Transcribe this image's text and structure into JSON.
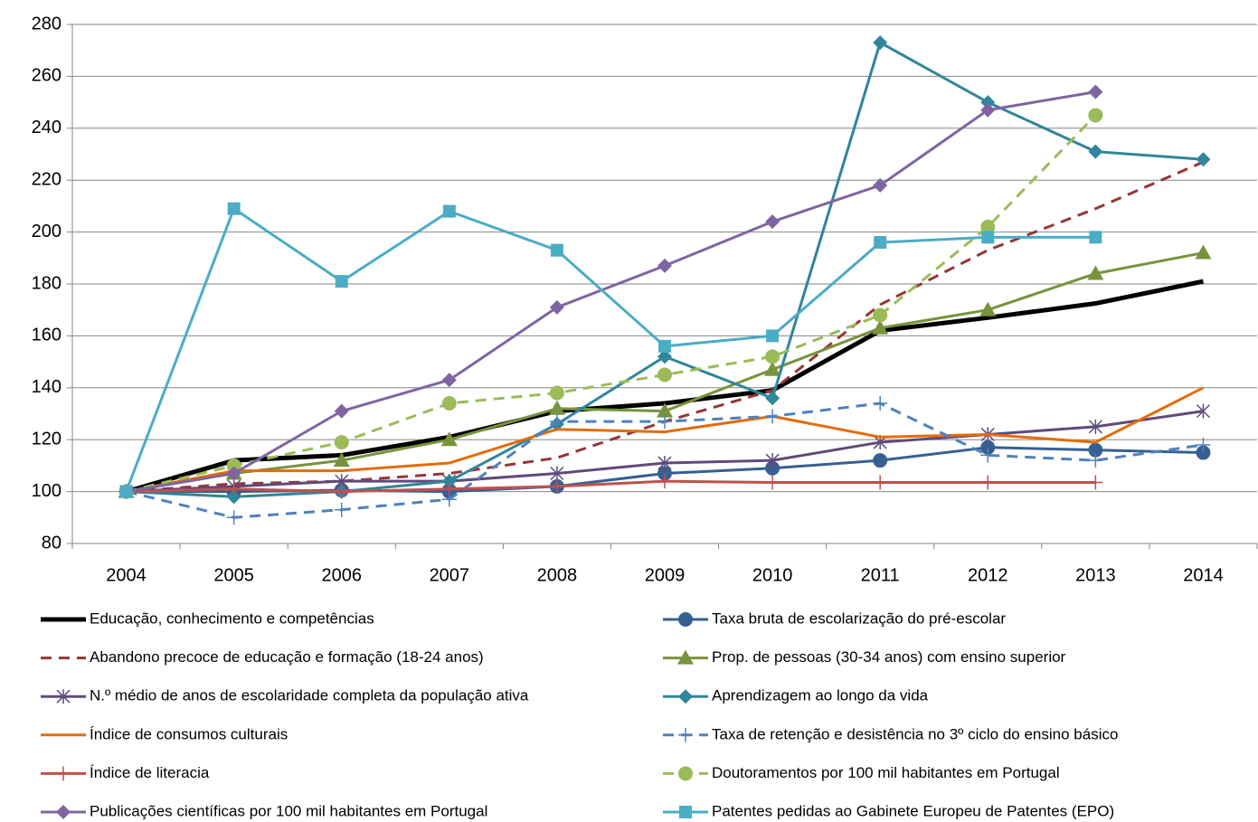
{
  "chart_data": {
    "type": "line",
    "categories": [
      "2004",
      "2005",
      "2006",
      "2007",
      "2008",
      "2009",
      "2010",
      "2011",
      "2012",
      "2013",
      "2014"
    ],
    "ylim": [
      80,
      280
    ],
    "yticks": [
      80,
      100,
      120,
      140,
      160,
      180,
      200,
      220,
      240,
      260,
      280
    ],
    "grid": true,
    "series": [
      {
        "name": "Educação, conhecimento e competências",
        "color": "#000000",
        "width": 5,
        "dash": false,
        "marker": "none",
        "values": [
          100,
          112,
          114,
          121,
          131,
          134,
          139,
          162,
          167,
          172.5,
          181
        ]
      },
      {
        "name": "Taxa bruta de escolarização do pré-escolar",
        "color": "#366092",
        "width": 3,
        "dash": false,
        "marker": "circle",
        "values": [
          100,
          100,
          100.5,
          100,
          102,
          107,
          109,
          112,
          117,
          116,
          115
        ]
      },
      {
        "name": "Abandono precoce de educação e formação (18-24 anos)",
        "color": "#953735",
        "width": 3,
        "dash": true,
        "marker": "none",
        "values": [
          100,
          103,
          104,
          107,
          113,
          127,
          139,
          172,
          193,
          209,
          227
        ]
      },
      {
        "name": "Prop. de pessoas (30-34 anos) com ensino superior",
        "color": "#77933C",
        "width": 3,
        "dash": false,
        "marker": "triangle",
        "values": [
          100,
          107,
          112,
          120,
          132,
          131,
          147,
          163,
          170,
          184,
          192
        ]
      },
      {
        "name": "N.º médio de anos de escolaridade completa da população ativa",
        "color": "#604A7B",
        "width": 3,
        "dash": false,
        "marker": "x",
        "values": [
          100,
          102,
          104,
          104,
          107,
          111,
          112,
          119,
          122,
          125,
          131
        ]
      },
      {
        "name": "Aprendizagem ao longo da vida",
        "color": "#31859C",
        "width": 3,
        "dash": false,
        "marker": "diamond",
        "values": [
          100,
          98,
          100,
          104,
          126,
          152,
          136,
          273,
          250,
          231,
          228
        ]
      },
      {
        "name": "Índice de consumos culturais",
        "color": "#E46C0A",
        "width": 3,
        "dash": false,
        "marker": "none",
        "values": [
          100,
          108,
          108,
          111,
          124,
          123,
          129,
          121,
          122,
          119,
          140
        ]
      },
      {
        "name": "Taxa de retenção e desistência no 3º ciclo do ensino básico",
        "color": "#4F81BD",
        "width": 3,
        "dash": true,
        "marker": "plus",
        "values": [
          100,
          90,
          93,
          97,
          127,
          127,
          129,
          134,
          114,
          112,
          118
        ]
      },
      {
        "name": "Índice de literacia",
        "color": "#C0504D",
        "width": 3,
        "dash": false,
        "marker": "plus",
        "values": [
          100,
          101,
          100,
          101,
          102,
          104,
          103.5,
          103.5,
          103.5,
          103.5,
          null
        ]
      },
      {
        "name": "Doutoramentos por 100 mil habitantes em Portugal",
        "color": "#9BBB59",
        "width": 3,
        "dash": true,
        "marker": "circle",
        "values": [
          100,
          110,
          119,
          134,
          138,
          145,
          152,
          168,
          202,
          245,
          null
        ]
      },
      {
        "name": "Publicações científicas por 100 mil habitantes em Portugal",
        "color": "#8064A2",
        "width": 3,
        "dash": false,
        "marker": "diamond",
        "values": [
          100,
          107,
          131,
          143,
          171,
          187,
          204,
          218,
          247,
          254,
          null
        ]
      },
      {
        "name": "Patentes pedidas ao Gabinete Europeu de Patentes (EPO)",
        "color": "#4BACC6",
        "width": 3,
        "dash": false,
        "marker": "square",
        "values": [
          100,
          209,
          181,
          208,
          193,
          156,
          160,
          196,
          198,
          198,
          null
        ]
      }
    ]
  }
}
